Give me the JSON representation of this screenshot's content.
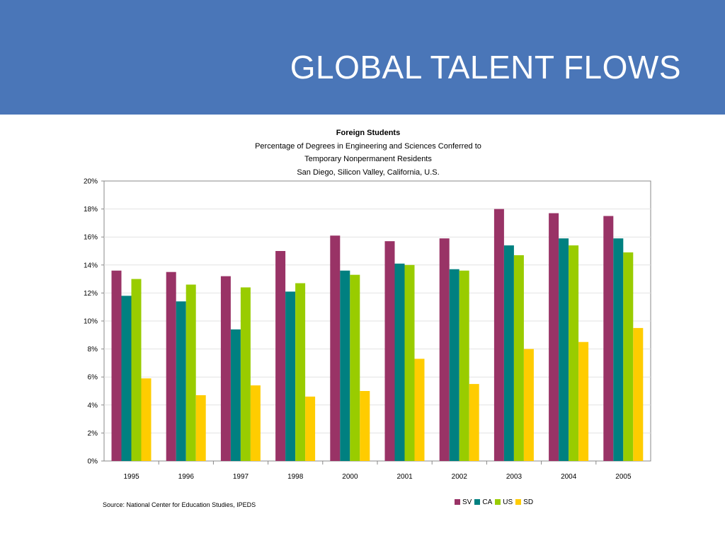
{
  "slide": {
    "title": "GLOBAL TALENT FLOWS"
  },
  "chart_heading": {
    "title": "Foreign Students",
    "line1": "Percentage of Degrees in Engineering and Sciences Conferred to",
    "line2": "Temporary Nonpermanent Residents",
    "line3": "San Diego, Silicon Valley, California, U.S."
  },
  "source": "Source: National Center for Education Studies, IPEDS",
  "colors": {
    "header_bg": "#4a76b8",
    "SV": "#993366",
    "CA": "#008080",
    "US": "#99cc00",
    "SD": "#ffcc00"
  },
  "chart_data": {
    "type": "bar",
    "title": "Foreign Students",
    "categories": [
      "1995",
      "1996",
      "1997",
      "1998",
      "2000",
      "2001",
      "2002",
      "2003",
      "2004",
      "2005"
    ],
    "series": [
      {
        "name": "SV",
        "values": [
          13.6,
          13.5,
          13.2,
          15.0,
          16.1,
          15.7,
          15.9,
          18.0,
          17.7,
          17.5
        ]
      },
      {
        "name": "CA",
        "values": [
          11.8,
          11.4,
          9.4,
          12.1,
          13.6,
          14.1,
          13.7,
          15.4,
          15.9,
          15.9
        ]
      },
      {
        "name": "US",
        "values": [
          13.0,
          12.6,
          12.4,
          12.7,
          13.3,
          14.0,
          13.6,
          14.7,
          15.4,
          14.9
        ]
      },
      {
        "name": "SD",
        "values": [
          5.9,
          4.7,
          5.4,
          4.6,
          5.0,
          7.3,
          5.5,
          8.0,
          8.5,
          9.5
        ]
      }
    ],
    "ylim": [
      0,
      20
    ],
    "yticks": [
      "0%",
      "2%",
      "4%",
      "6%",
      "8%",
      "10%",
      "12%",
      "14%",
      "16%",
      "18%",
      "20%"
    ],
    "grid": true,
    "legend": "bottom-right"
  }
}
